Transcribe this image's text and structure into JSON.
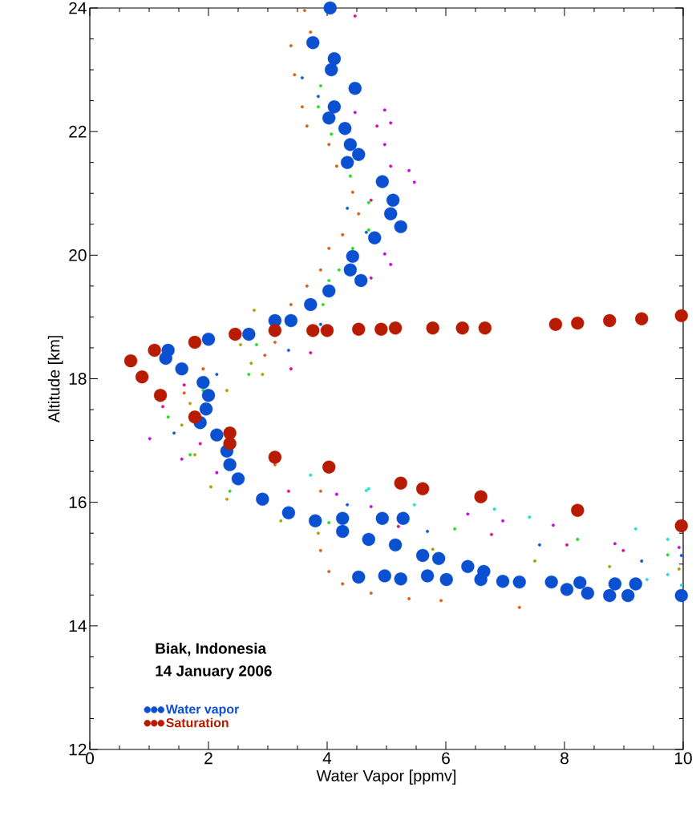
{
  "chart_data": {
    "type": "scatter",
    "xlabel": "Water Vapor [ppmv]",
    "ylabel": "Altitude [km]",
    "xlim": [
      0,
      10
    ],
    "xticks": [
      0,
      2,
      4,
      6,
      8,
      10
    ],
    "ylim": [
      12,
      24
    ],
    "yticks": [
      12,
      14,
      16,
      18,
      20,
      22,
      24
    ],
    "legend": "bottom left",
    "marker": "circle",
    "annotations": [
      "Biak, Indonesia",
      "14 January 2006"
    ],
    "series": [
      {
        "color": "#d8601a",
        "x": [
          3.62,
          3.72,
          3.39,
          3.45,
          3.58,
          3.66,
          4.03,
          4.16,
          4.43,
          4.53,
          4.26,
          4.03,
          3.89,
          3.66,
          3.39,
          3.12,
          2.95,
          1.91,
          1.59,
          3.12,
          3.89,
          3.89,
          4.03,
          4.26,
          4.74,
          5.38,
          5.92,
          7.24
        ],
        "values": [
          23.96,
          23.61,
          23.39,
          22.92,
          22.4,
          22.09,
          21.79,
          21.44,
          21.02,
          20.67,
          20.33,
          20.11,
          19.76,
          19.5,
          19.2,
          18.59,
          18.38,
          18.16,
          17.77,
          16.61,
          16.18,
          15.22,
          14.88,
          14.68,
          14.53,
          14.44,
          14.41,
          14.3
        ]
      },
      {
        "color": "#20e020",
        "x": [
          3.89,
          3.85,
          4.07,
          4.39,
          4.7,
          4.7,
          4.43,
          4.2,
          4.03,
          3.93,
          2.81,
          2.68,
          1.91,
          1.32,
          1.69,
          2.36,
          4.03,
          6.15,
          8.22,
          9.74
        ],
        "values": [
          22.74,
          22.4,
          21.96,
          21.28,
          20.85,
          20.41,
          20.11,
          19.76,
          19.59,
          19.2,
          18.55,
          18.07,
          17.81,
          17.38,
          16.77,
          16.18,
          15.67,
          15.57,
          15.4,
          15.15
        ]
      },
      {
        "color": "#c010e0",
        "x": [
          4.47,
          4.97,
          5.07,
          4.97,
          5.38,
          5.47,
          4.97,
          5.07,
          4.74,
          1.01,
          1.55,
          2.14,
          4.16,
          4.74,
          6.37,
          6.96,
          7.81,
          8.85,
          9.93
        ],
        "values": [
          22.31,
          22.35,
          22.14,
          21.79,
          21.37,
          21.18,
          20.02,
          19.85,
          19.63,
          17.03,
          16.7,
          16.48,
          16.13,
          15.93,
          15.81,
          15.7,
          15.63,
          15.33,
          15.27
        ]
      },
      {
        "color": "#e0108c",
        "x": [
          4.47,
          4.84,
          5.07,
          4.74,
          3.72,
          3.39,
          1.59,
          1.23,
          1.86,
          3.35,
          5.2,
          6.77,
          8.04,
          8.99
        ],
        "values": [
          23.87,
          22.09,
          21.44,
          20.89,
          18.42,
          18.16,
          17.9,
          17.55,
          16.95,
          16.18,
          15.61,
          15.48,
          15.31,
          15.22
        ]
      },
      {
        "color": "#20e0d8",
        "x": [
          3.72,
          4.7,
          4.66,
          5.47,
          6.82,
          7.41,
          9.2,
          9.74,
          9.39,
          9.74,
          9.97
        ],
        "values": [
          16.44,
          16.22,
          16.19,
          15.96,
          15.89,
          15.76,
          15.57,
          15.4,
          14.75,
          14.83,
          14.66
        ]
      },
      {
        "color": "#b0a000",
        "x": [
          2.77,
          2.54,
          2.72,
          2.91,
          2.31,
          1.69,
          1.55,
          1.77,
          2.04,
          2.31,
          3.22,
          3.85,
          5.78,
          7.5,
          8.76,
          9.93
        ],
        "values": [
          19.11,
          18.55,
          18.25,
          18.07,
          17.81,
          17.6,
          17.25,
          16.77,
          16.25,
          16.05,
          15.7,
          15.5,
          15.24,
          15.05,
          14.96,
          14.92
        ]
      },
      {
        "color": "#1060d0",
        "x": [
          3.58,
          3.85,
          4.34,
          4.66,
          3.89,
          3.35,
          2.14,
          1.42,
          4.34,
          5.69,
          7.58,
          9.3,
          9.97
        ],
        "values": [
          22.87,
          22.57,
          20.76,
          20.37,
          18.88,
          18.46,
          18.07,
          17.12,
          15.96,
          15.53,
          15.31,
          15.05,
          15.14
        ]
      },
      {
        "name": "Water vapor",
        "color": "#0a50d0",
        "x": [
          4.05,
          3.76,
          4.12,
          4.07,
          4.47,
          4.12,
          4.03,
          4.3,
          4.39,
          4.53,
          4.34,
          4.93,
          5.11,
          5.07,
          5.24,
          4.8,
          4.43,
          4.39,
          4.57,
          4.03,
          3.72,
          3.39,
          3.12,
          2.68,
          2.0,
          1.32,
          1.28,
          1.55,
          1.91,
          2.0,
          1.96,
          1.86,
          2.14,
          2.31,
          2.36,
          2.5,
          2.91,
          3.35,
          3.8,
          4.26,
          4.26,
          4.7,
          4.93,
          5.28,
          5.15,
          5.61,
          5.88,
          6.37,
          6.64,
          6.59,
          4.53,
          4.97,
          5.24,
          5.69,
          6.01,
          6.96,
          7.24,
          7.78,
          8.04,
          8.26,
          8.39,
          8.76,
          8.85,
          9.07,
          9.2,
          9.97
        ],
        "values": [
          24.0,
          23.44,
          23.18,
          23.0,
          22.7,
          22.4,
          22.22,
          22.05,
          21.79,
          21.63,
          21.5,
          21.19,
          20.89,
          20.67,
          20.46,
          20.28,
          19.98,
          19.76,
          19.59,
          19.42,
          19.2,
          18.94,
          18.94,
          18.72,
          18.64,
          18.46,
          18.33,
          18.16,
          17.94,
          17.73,
          17.51,
          17.29,
          17.09,
          16.83,
          16.61,
          16.38,
          16.05,
          15.83,
          15.7,
          15.74,
          15.53,
          15.4,
          15.74,
          15.74,
          15.31,
          15.14,
          15.09,
          14.96,
          14.88,
          14.75,
          14.79,
          14.81,
          14.76,
          14.81,
          14.75,
          14.72,
          14.71,
          14.71,
          14.59,
          14.7,
          14.53,
          14.49,
          14.68,
          14.49,
          14.68,
          14.49
        ]
      },
      {
        "name": "Saturation",
        "color": "#b81c00",
        "x": [
          9.97,
          8.22,
          6.59,
          5.61,
          5.24,
          4.03,
          3.12,
          2.36,
          2.36,
          1.77,
          1.19,
          0.88,
          0.69,
          1.09,
          1.77,
          2.45,
          3.12,
          3.76,
          4.0,
          4.53,
          4.91,
          5.15,
          5.78,
          6.28,
          6.66,
          7.85,
          8.22,
          8.76,
          9.3,
          9.97
        ],
        "values": [
          15.62,
          15.87,
          16.09,
          16.22,
          16.31,
          16.57,
          16.73,
          16.95,
          17.12,
          17.38,
          17.73,
          18.03,
          18.29,
          18.46,
          18.59,
          18.72,
          18.78,
          18.78,
          18.78,
          18.8,
          18.8,
          18.82,
          18.82,
          18.82,
          18.82,
          18.88,
          18.9,
          18.94,
          18.97,
          19.02
        ]
      }
    ]
  }
}
